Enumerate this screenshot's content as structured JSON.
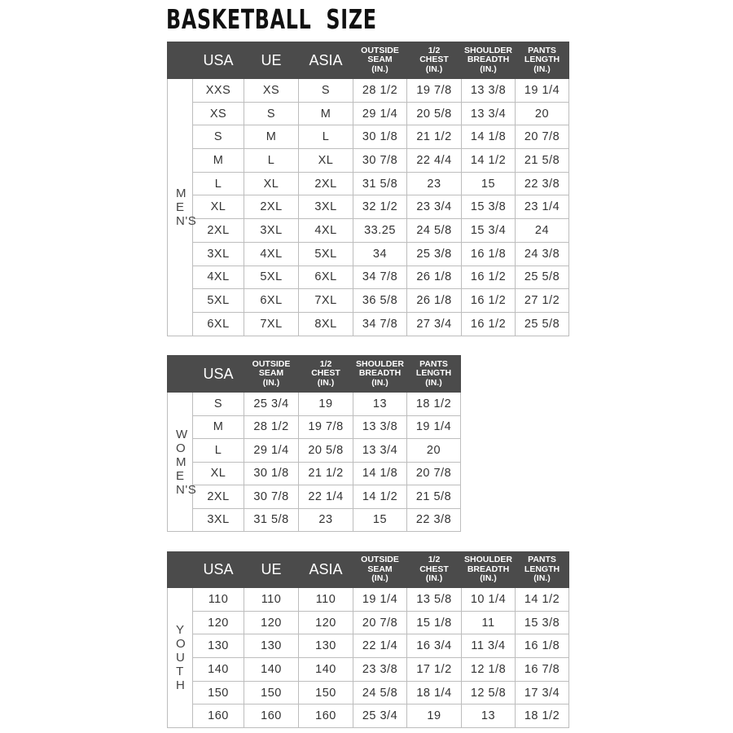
{
  "title": "BASKETBALL  SIZE",
  "colors": {
    "header_bg": "#4b4b4b",
    "header_text": "#ffffff",
    "grid": "#bdbdbd"
  },
  "tables": [
    {
      "id": "mens",
      "side_label": "MEN'S",
      "headers": [
        "USA",
        "UE",
        "ASIA",
        "OUTSIDE SEAM (IN.)",
        "1/2 CHEST (IN.)",
        "SHOULDER BREADTH (IN.)",
        "PANTS LENGTH (IN.)"
      ],
      "rows": [
        [
          "XXS",
          "XS",
          "S",
          "28 1/2",
          "19 7/8",
          "13 3/8",
          "19 1/4"
        ],
        [
          "XS",
          "S",
          "M",
          "29 1/4",
          "20 5/8",
          "13 3/4",
          "20"
        ],
        [
          "S",
          "M",
          "L",
          "30 1/8",
          "21 1/2",
          "14 1/8",
          "20 7/8"
        ],
        [
          "M",
          "L",
          "XL",
          "30 7/8",
          "22 4/4",
          "14 1/2",
          "21 5/8"
        ],
        [
          "L",
          "XL",
          "2XL",
          "31 5/8",
          "23",
          "15",
          "22 3/8"
        ],
        [
          "XL",
          "2XL",
          "3XL",
          "32 1/2",
          "23 3/4",
          "15 3/8",
          "23 1/4"
        ],
        [
          "2XL",
          "3XL",
          "4XL",
          "33.25",
          "24 5/8",
          "15 3/4",
          "24"
        ],
        [
          "3XL",
          "4XL",
          "5XL",
          "34",
          "25 3/8",
          "16 1/8",
          "24 3/8"
        ],
        [
          "4XL",
          "5XL",
          "6XL",
          "34 7/8",
          "26 1/8",
          "16 1/2",
          "25 5/8"
        ],
        [
          "5XL",
          "6XL",
          "7XL",
          "36 5/8",
          "26 1/8",
          "16 1/2",
          "27 1/2"
        ],
        [
          "6XL",
          "7XL",
          "8XL",
          "34 7/8",
          "27 3/4",
          "16 1/2",
          "25 5/8"
        ]
      ]
    },
    {
      "id": "womens",
      "side_label": "WOMEN'S",
      "headers": [
        "USA",
        "OUTSIDE SEAM (IN.)",
        "1/2 CHEST (IN.)",
        "SHOULDER BREADTH (IN.)",
        "PANTS LENGTH (IN.)"
      ],
      "rows": [
        [
          "S",
          "25 3/4",
          "19",
          "13",
          "18 1/2"
        ],
        [
          "M",
          "28 1/2",
          "19 7/8",
          "13 3/8",
          "19 1/4"
        ],
        [
          "L",
          "29 1/4",
          "20 5/8",
          "13 3/4",
          "20"
        ],
        [
          "XL",
          "30 1/8",
          "21 1/2",
          "14 1/8",
          "20 7/8"
        ],
        [
          "2XL",
          "30 7/8",
          "22 1/4",
          "14 1/2",
          "21 5/8"
        ],
        [
          "3XL",
          "31 5/8",
          "23",
          "15",
          "22 3/8"
        ]
      ]
    },
    {
      "id": "youth",
      "side_label": "YOUTH",
      "headers": [
        "USA",
        "UE",
        "ASIA",
        "OUTSIDE SEAM (IN.)",
        "1/2 CHEST (IN.)",
        "SHOULDER BREADTH (IN.)",
        "PANTS LENGTH (IN.)"
      ],
      "rows": [
        [
          "110",
          "110",
          "110",
          "19 1/4",
          "13 5/8",
          "10 1/4",
          "14 1/2"
        ],
        [
          "120",
          "120",
          "120",
          "20 7/8",
          "15 1/8",
          "11",
          "15 3/8"
        ],
        [
          "130",
          "130",
          "130",
          "22 1/4",
          "16 3/4",
          "11 3/4",
          "16 1/8"
        ],
        [
          "140",
          "140",
          "140",
          "23 3/8",
          "17 1/2",
          "12 1/8",
          "16 7/8"
        ],
        [
          "150",
          "150",
          "150",
          "24 5/8",
          "18 1/4",
          "12 5/8",
          "17 3/4"
        ],
        [
          "160",
          "160",
          "160",
          "25 3/4",
          "19",
          "13",
          "18 1/2"
        ]
      ]
    }
  ]
}
